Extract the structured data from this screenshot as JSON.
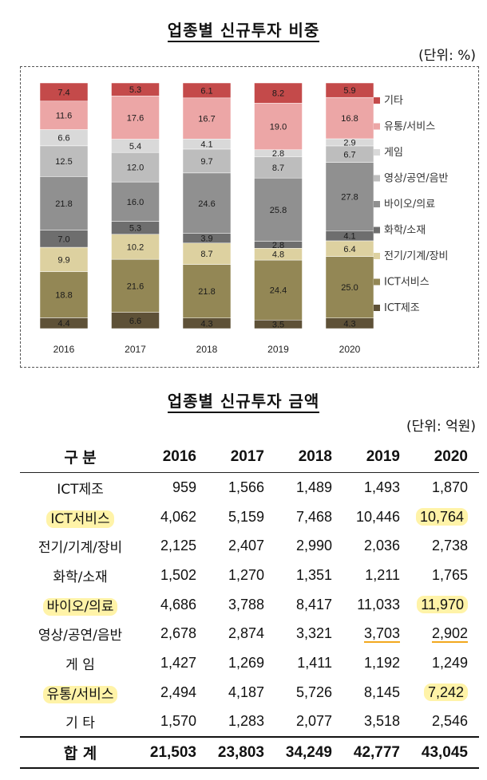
{
  "chart_title": "업종별 신규투자 비중",
  "chart_unit": "(단위: %)",
  "table_title": "업종별 신규투자 금액",
  "table_unit": "(단위: 억원)",
  "chart_data": {
    "type": "bar",
    "stacked": true,
    "title": "업종별 신규투자 비중",
    "unit": "%",
    "categories": [
      "2016",
      "2017",
      "2018",
      "2019",
      "2020"
    ],
    "ylim": [
      0,
      100
    ],
    "legend_position": "right",
    "series": [
      {
        "name": "ICT제조",
        "color": "#5e5137",
        "values": [
          4.4,
          6.6,
          4.3,
          3.5,
          4.3
        ]
      },
      {
        "name": "ICT서비스",
        "color": "#938755",
        "values": [
          18.8,
          21.6,
          21.8,
          24.4,
          25.0
        ]
      },
      {
        "name": "전기/기계/장비",
        "color": "#ddd1a0",
        "values": [
          9.9,
          10.2,
          8.7,
          4.8,
          6.4
        ]
      },
      {
        "name": "화학/소재",
        "color": "#6e6e6e",
        "values": [
          7.0,
          5.3,
          3.9,
          2.8,
          4.1
        ]
      },
      {
        "name": "바이오/의료",
        "color": "#909090",
        "values": [
          21.8,
          16.0,
          24.6,
          25.8,
          27.8
        ]
      },
      {
        "name": "영상/공연/음반",
        "color": "#bdbdbd",
        "values": [
          12.5,
          12.0,
          9.7,
          8.7,
          6.7
        ]
      },
      {
        "name": "게임",
        "color": "#d9d9d9",
        "values": [
          6.6,
          5.4,
          4.1,
          2.8,
          2.9
        ]
      },
      {
        "name": "유통/서비스",
        "color": "#eca6a6",
        "values": [
          11.6,
          17.6,
          16.7,
          19.0,
          16.8
        ]
      },
      {
        "name": "기타",
        "color": "#c44a4a",
        "values": [
          7.4,
          5.3,
          6.1,
          8.2,
          5.9
        ]
      }
    ]
  },
  "table": {
    "header": [
      "구 분",
      "2016",
      "2017",
      "2018",
      "2019",
      "2020"
    ],
    "rows": [
      {
        "label": "ICT제조",
        "values": [
          "959",
          "1,566",
          "1,489",
          "1,493",
          "1,870"
        ],
        "highlight": false
      },
      {
        "label": "ICT서비스",
        "values": [
          "4,062",
          "5,159",
          "7,468",
          "10,446",
          "10,764"
        ],
        "highlight": true
      },
      {
        "label": "전기/기계/장비",
        "values": [
          "2,125",
          "2,407",
          "2,990",
          "2,036",
          "2,738"
        ],
        "highlight": false
      },
      {
        "label": "화학/소재",
        "values": [
          "1,502",
          "1,270",
          "1,351",
          "1,211",
          "1,765"
        ],
        "highlight": false
      },
      {
        "label": "바이오/의료",
        "values": [
          "4,686",
          "3,788",
          "8,417",
          "11,033",
          "11,970"
        ],
        "highlight": true
      },
      {
        "label": "영상/공연/음반",
        "values": [
          "2,678",
          "2,874",
          "3,321",
          "3,703",
          "2,902"
        ],
        "highlight": false,
        "underline": [
          3,
          4
        ]
      },
      {
        "label": "게 임",
        "values": [
          "1,427",
          "1,269",
          "1,411",
          "1,192",
          "1,249"
        ],
        "highlight": false
      },
      {
        "label": "유통/서비스",
        "values": [
          "2,494",
          "4,187",
          "5,726",
          "8,145",
          "7,242"
        ],
        "highlight": true
      },
      {
        "label": "기 타",
        "values": [
          "1,570",
          "1,283",
          "2,077",
          "3,518",
          "2,546"
        ],
        "highlight": false
      }
    ],
    "total": {
      "label": "합 계",
      "values": [
        "21,503",
        "23,803",
        "34,249",
        "42,777",
        "43,045"
      ]
    }
  }
}
